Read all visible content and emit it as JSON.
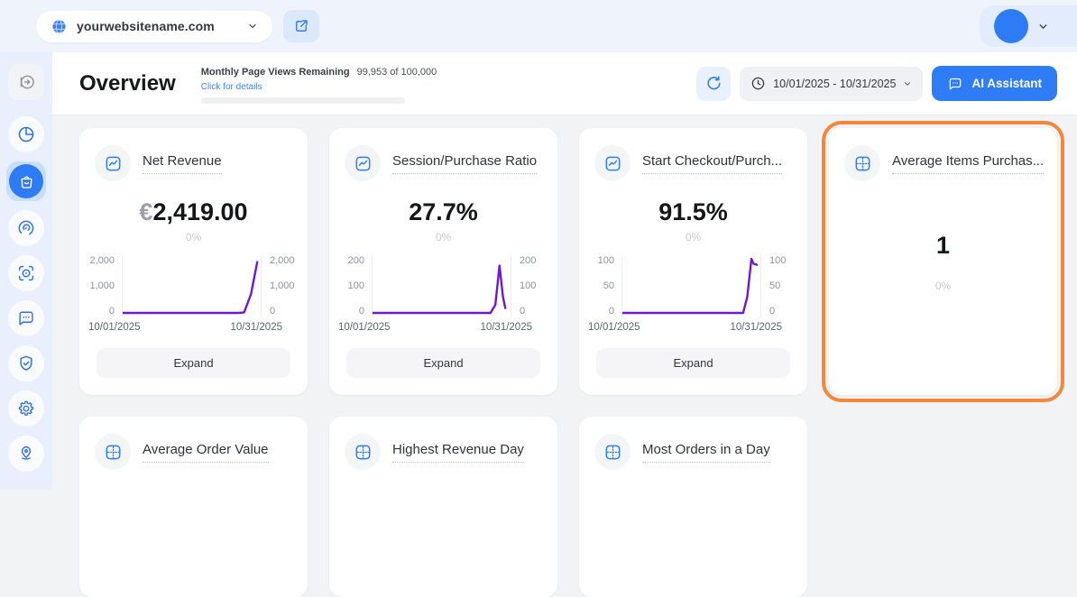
{
  "top_bar": {
    "website": "yourwebsitename.com"
  },
  "sidebar": {
    "items": [
      {
        "icon": "collapse-panel-icon",
        "active": false
      },
      {
        "icon": "pie-chart-icon",
        "active": false
      },
      {
        "icon": "shopping-bag-icon",
        "active": true
      },
      {
        "icon": "radar-sessions-icon",
        "active": false
      },
      {
        "icon": "focus-record-icon",
        "active": false
      },
      {
        "icon": "chat-feedback-icon",
        "active": false
      },
      {
        "icon": "shield-check-icon",
        "active": false
      },
      {
        "icon": "settings-gear-icon",
        "active": false
      },
      {
        "icon": "location-pin-icon",
        "active": false
      }
    ]
  },
  "header": {
    "title": "Overview",
    "quota_label": "Monthly Page Views Remaining",
    "quota_value": "99,953 of 100,000",
    "quota_link": "Click for details",
    "date_range": "10/01/2025 - 10/31/2025",
    "ai_assistant_label": "AI Assistant"
  },
  "cards": [
    {
      "icon": "line-chart-icon",
      "title": "Net Revenue",
      "value_prefix": "€",
      "value": "2,419.00",
      "delta": "0%",
      "expand_label": "Expand",
      "chart_index": 0
    },
    {
      "icon": "line-chart-icon",
      "title": "Session/Purchase Ratio",
      "value_prefix": "",
      "value": "27.7%",
      "delta": "0%",
      "expand_label": "Expand",
      "chart_index": 1
    },
    {
      "icon": "line-chart-icon",
      "title": "Start Checkout/Purch...",
      "value_prefix": "",
      "value": "91.5%",
      "delta": "0%",
      "expand_label": "Expand",
      "chart_index": 2
    },
    {
      "icon": "table-grid-icon",
      "title": "Average Items Purchas...",
      "value_prefix": "",
      "value": "1",
      "delta": "0%",
      "highlighted": true
    }
  ],
  "row2_cards": [
    {
      "icon": "table-grid-icon",
      "title": "Average Order Value"
    },
    {
      "icon": "table-grid-icon",
      "title": "Highest Revenue Day"
    },
    {
      "icon": "table-grid-icon",
      "title": "Most Orders in a Day"
    }
  ],
  "chart_data": [
    {
      "type": "line",
      "title": "Net Revenue",
      "x_labels": [
        "10/01/2025",
        "10/31/2025"
      ],
      "y_ticks": [
        "2,000",
        "1,000",
        "0"
      ],
      "ylim": [
        0,
        2000
      ],
      "line_color": "#7017d1",
      "grid": false,
      "points": [
        {
          "x": 0,
          "y": 0
        },
        {
          "x": 0.84,
          "y": 0
        },
        {
          "x": 0.88,
          "y": 20
        },
        {
          "x": 0.93,
          "y": 700
        },
        {
          "x": 0.975,
          "y": 1880
        }
      ]
    },
    {
      "type": "line",
      "title": "Session/Purchase Ratio",
      "x_labels": [
        "10/01/2025",
        "10/31/2025"
      ],
      "y_ticks": [
        "200",
        "100",
        "0"
      ],
      "ylim": [
        0,
        200
      ],
      "line_color": "#7017d1",
      "grid": false,
      "points": [
        {
          "x": 0,
          "y": 0
        },
        {
          "x": 0.855,
          "y": 0
        },
        {
          "x": 0.89,
          "y": 30
        },
        {
          "x": 0.92,
          "y": 175
        },
        {
          "x": 0.945,
          "y": 60
        },
        {
          "x": 0.962,
          "y": 18
        }
      ]
    },
    {
      "type": "line",
      "title": "Start Checkout/Purchase",
      "x_labels": [
        "10/01/2025",
        "10/31/2025"
      ],
      "y_ticks": [
        "100",
        "50",
        "0"
      ],
      "ylim": [
        0,
        100
      ],
      "line_color": "#7017d1",
      "grid": false,
      "points": [
        {
          "x": 0,
          "y": 0
        },
        {
          "x": 0.875,
          "y": 0
        },
        {
          "x": 0.905,
          "y": 30
        },
        {
          "x": 0.935,
          "y": 100
        },
        {
          "x": 0.95,
          "y": 91
        },
        {
          "x": 0.975,
          "y": 89
        }
      ]
    }
  ],
  "colors": {
    "accent_blue": "#2e7cf6",
    "chart_purple": "#7017d1",
    "highlight_orange": "#f5873a"
  }
}
